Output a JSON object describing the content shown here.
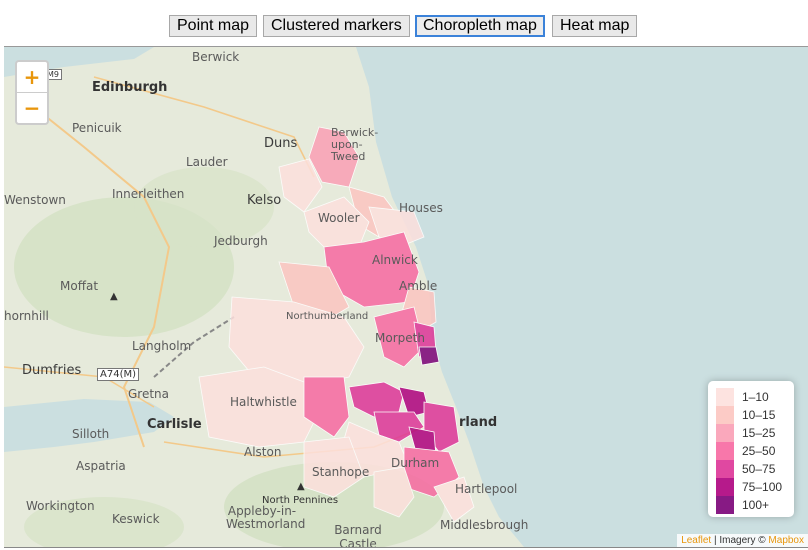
{
  "toolbar": {
    "buttons": [
      {
        "label": "Point map",
        "active": false
      },
      {
        "label": "Clustered markers",
        "active": false
      },
      {
        "label": "Choropleth map",
        "active": true
      },
      {
        "label": "Heat map",
        "active": false
      }
    ]
  },
  "map": {
    "zoom_in": "+",
    "zoom_out": "−",
    "places": {
      "berwick_top": "Berwick",
      "edinburgh": "Edinburgh",
      "penicuik": "Penicuik",
      "duns": "Duns",
      "lauder": "Lauder",
      "berwick_upon_tweed": "Berwick-upon-Tweed",
      "innerleithen": "Innerleithen",
      "kelso": "Kelso",
      "wenstown": "Wenstown",
      "wooler": "Wooler",
      "houses": "Houses",
      "jedburgh": "Jedburgh",
      "alnwick": "Alnwick",
      "moffat": "Moffat",
      "amble": "Amble",
      "hornhill": "hornhill",
      "northumberland": "Northumberland",
      "morpeth": "Morpeth",
      "langholm": "Langholm",
      "dumfries": "Dumfries",
      "gretna": "Gretna",
      "haltwhistle": "Haltwhistle",
      "carlisle": "Carlisle",
      "silloth": "Silloth",
      "sunderland": "rland",
      "alston": "Alston",
      "aspatria": "Aspatria",
      "stanhope": "Stanhope",
      "durham": "Durham",
      "north_pennines": "North Pennines",
      "hartlepool": "Hartlepool",
      "workington": "Workington",
      "keswick": "Keswick",
      "appleby": "Appleby-in-Westmorland",
      "barnard_castle": "Barnard Castle",
      "middlesbrough": "Middlesbrough"
    },
    "roads": [
      "M9",
      "A74(M)"
    ]
  },
  "legend": {
    "title": "",
    "items": [
      {
        "label": "1–10",
        "color": "#fde0dd"
      },
      {
        "label": "10–15",
        "color": "#fcc5c0"
      },
      {
        "label": "15–25",
        "color": "#fa9fb5"
      },
      {
        "label": "25–50",
        "color": "#f768a1"
      },
      {
        "label": "50–75",
        "color": "#dd3497"
      },
      {
        "label": "75–100",
        "color": "#ae017e"
      },
      {
        "label": "100+",
        "color": "#7a0177"
      }
    ]
  },
  "attribution": {
    "leaflet": "Leaflet",
    "sep": " | Imagery © ",
    "mapbox": "Mapbox"
  },
  "colors": {
    "sea": "#cbdfe0",
    "land": "#e8ebdf",
    "accent_zoom": "#e8960c",
    "active_button_border": "#3b82d9"
  }
}
